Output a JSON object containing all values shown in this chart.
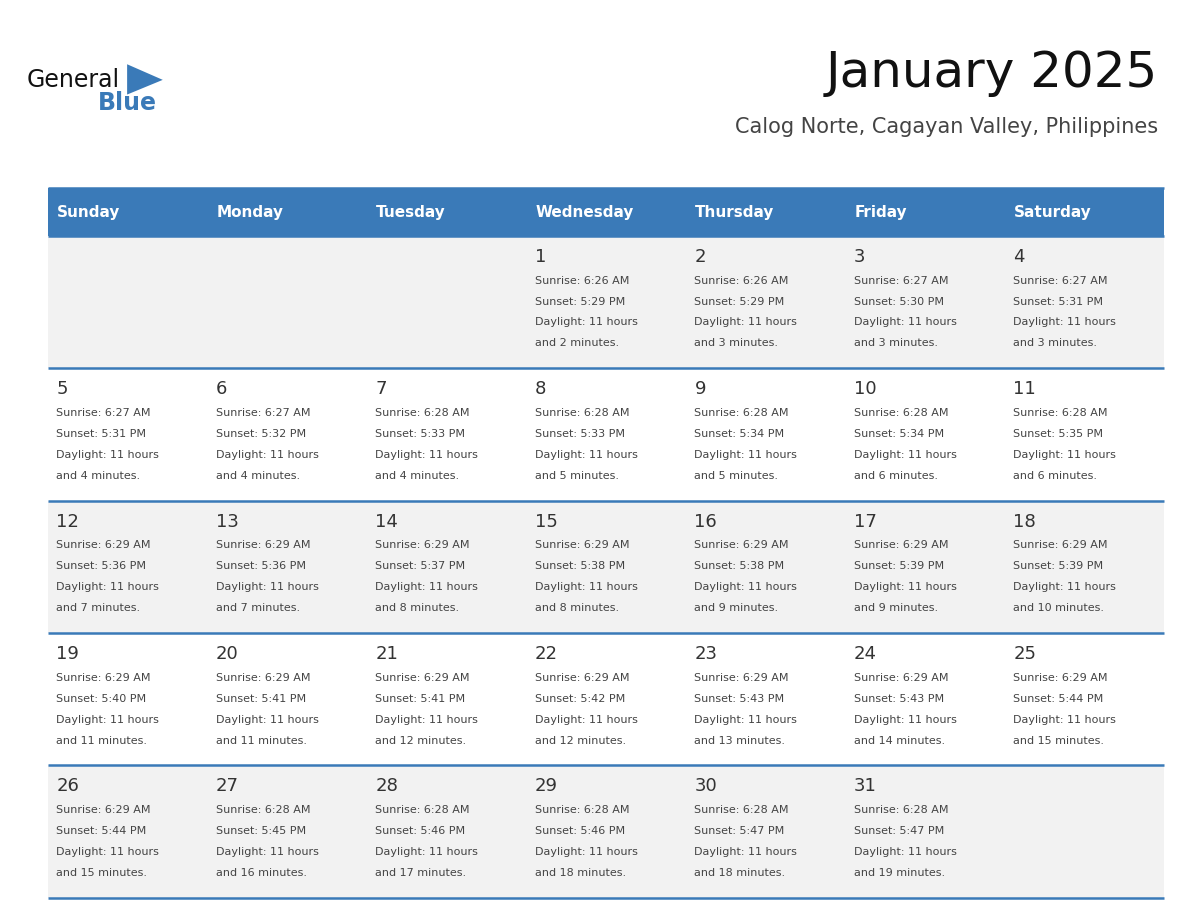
{
  "title": "January 2025",
  "subtitle": "Calog Norte, Cagayan Valley, Philippines",
  "header_bg": "#3a7ab8",
  "header_text": "#ffffff",
  "row_bg_odd": "#f2f2f2",
  "row_bg_even": "#ffffff",
  "cell_text": "#333333",
  "border_color": "#3a7ab8",
  "days_of_week": [
    "Sunday",
    "Monday",
    "Tuesday",
    "Wednesday",
    "Thursday",
    "Friday",
    "Saturday"
  ],
  "calendar": [
    [
      null,
      null,
      null,
      {
        "day": 1,
        "sunrise": "6:26 AM",
        "sunset": "5:29 PM",
        "daylight": "11 hours and 2 minutes."
      },
      {
        "day": 2,
        "sunrise": "6:26 AM",
        "sunset": "5:29 PM",
        "daylight": "11 hours and 3 minutes."
      },
      {
        "day": 3,
        "sunrise": "6:27 AM",
        "sunset": "5:30 PM",
        "daylight": "11 hours and 3 minutes."
      },
      {
        "day": 4,
        "sunrise": "6:27 AM",
        "sunset": "5:31 PM",
        "daylight": "11 hours and 3 minutes."
      }
    ],
    [
      {
        "day": 5,
        "sunrise": "6:27 AM",
        "sunset": "5:31 PM",
        "daylight": "11 hours and 4 minutes."
      },
      {
        "day": 6,
        "sunrise": "6:27 AM",
        "sunset": "5:32 PM",
        "daylight": "11 hours and 4 minutes."
      },
      {
        "day": 7,
        "sunrise": "6:28 AM",
        "sunset": "5:33 PM",
        "daylight": "11 hours and 4 minutes."
      },
      {
        "day": 8,
        "sunrise": "6:28 AM",
        "sunset": "5:33 PM",
        "daylight": "11 hours and 5 minutes."
      },
      {
        "day": 9,
        "sunrise": "6:28 AM",
        "sunset": "5:34 PM",
        "daylight": "11 hours and 5 minutes."
      },
      {
        "day": 10,
        "sunrise": "6:28 AM",
        "sunset": "5:34 PM",
        "daylight": "11 hours and 6 minutes."
      },
      {
        "day": 11,
        "sunrise": "6:28 AM",
        "sunset": "5:35 PM",
        "daylight": "11 hours and 6 minutes."
      }
    ],
    [
      {
        "day": 12,
        "sunrise": "6:29 AM",
        "sunset": "5:36 PM",
        "daylight": "11 hours and 7 minutes."
      },
      {
        "day": 13,
        "sunrise": "6:29 AM",
        "sunset": "5:36 PM",
        "daylight": "11 hours and 7 minutes."
      },
      {
        "day": 14,
        "sunrise": "6:29 AM",
        "sunset": "5:37 PM",
        "daylight": "11 hours and 8 minutes."
      },
      {
        "day": 15,
        "sunrise": "6:29 AM",
        "sunset": "5:38 PM",
        "daylight": "11 hours and 8 minutes."
      },
      {
        "day": 16,
        "sunrise": "6:29 AM",
        "sunset": "5:38 PM",
        "daylight": "11 hours and 9 minutes."
      },
      {
        "day": 17,
        "sunrise": "6:29 AM",
        "sunset": "5:39 PM",
        "daylight": "11 hours and 9 minutes."
      },
      {
        "day": 18,
        "sunrise": "6:29 AM",
        "sunset": "5:39 PM",
        "daylight": "11 hours and 10 minutes."
      }
    ],
    [
      {
        "day": 19,
        "sunrise": "6:29 AM",
        "sunset": "5:40 PM",
        "daylight": "11 hours and 11 minutes."
      },
      {
        "day": 20,
        "sunrise": "6:29 AM",
        "sunset": "5:41 PM",
        "daylight": "11 hours and 11 minutes."
      },
      {
        "day": 21,
        "sunrise": "6:29 AM",
        "sunset": "5:41 PM",
        "daylight": "11 hours and 12 minutes."
      },
      {
        "day": 22,
        "sunrise": "6:29 AM",
        "sunset": "5:42 PM",
        "daylight": "11 hours and 12 minutes."
      },
      {
        "day": 23,
        "sunrise": "6:29 AM",
        "sunset": "5:43 PM",
        "daylight": "11 hours and 13 minutes."
      },
      {
        "day": 24,
        "sunrise": "6:29 AM",
        "sunset": "5:43 PM",
        "daylight": "11 hours and 14 minutes."
      },
      {
        "day": 25,
        "sunrise": "6:29 AM",
        "sunset": "5:44 PM",
        "daylight": "11 hours and 15 minutes."
      }
    ],
    [
      {
        "day": 26,
        "sunrise": "6:29 AM",
        "sunset": "5:44 PM",
        "daylight": "11 hours and 15 minutes."
      },
      {
        "day": 27,
        "sunrise": "6:28 AM",
        "sunset": "5:45 PM",
        "daylight": "11 hours and 16 minutes."
      },
      {
        "day": 28,
        "sunrise": "6:28 AM",
        "sunset": "5:46 PM",
        "daylight": "11 hours and 17 minutes."
      },
      {
        "day": 29,
        "sunrise": "6:28 AM",
        "sunset": "5:46 PM",
        "daylight": "11 hours and 18 minutes."
      },
      {
        "day": 30,
        "sunrise": "6:28 AM",
        "sunset": "5:47 PM",
        "daylight": "11 hours and 18 minutes."
      },
      {
        "day": 31,
        "sunrise": "6:28 AM",
        "sunset": "5:47 PM",
        "daylight": "11 hours and 19 minutes."
      },
      null
    ]
  ],
  "logo_text_general": "General",
  "logo_text_blue": "Blue",
  "logo_triangle_color": "#3a7ab8"
}
